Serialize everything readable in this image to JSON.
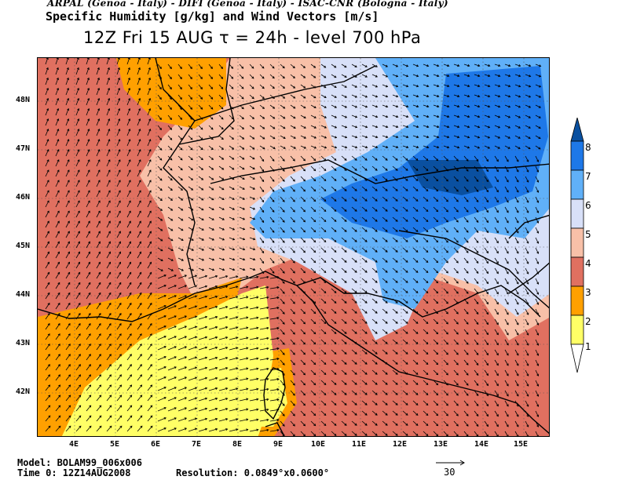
{
  "header": {
    "credits": "ARPAL (Genoa - Italy)  -  DIFI (Genoa - Italy)  -  ISAC-CNR (Bologna - Italy)",
    "product": "Specific Humidity [g/kg] and Wind Vectors [m/s]",
    "forecast": "12Z Fri 15 AUG  τ = 24h  -  level 700 hPa"
  },
  "axes": {
    "lat_labels": [
      "48N",
      "47N",
      "46N",
      "45N",
      "44N",
      "43N",
      "42N"
    ],
    "lon_labels": [
      "4E",
      "5E",
      "6E",
      "7E",
      "8E",
      "9E",
      "10E",
      "11E",
      "12E",
      "13E",
      "14E",
      "15E"
    ]
  },
  "legend": {
    "levels": [
      "1",
      "2",
      "3",
      "4",
      "5",
      "6",
      "7",
      "8"
    ],
    "colors": [
      "#ffff66",
      "#ffa000",
      "#e07060",
      "#f8c0a8",
      "#d8e0f8",
      "#60b0f8",
      "#1e78e8",
      "#0a50a0"
    ]
  },
  "footer": {
    "model": "Model: BOLAM99_006x006",
    "time": "Time 0: 12Z14AUG2008",
    "resolution": "Resolution: 0.0849°x0.0600°",
    "ref_vector": "30"
  }
}
